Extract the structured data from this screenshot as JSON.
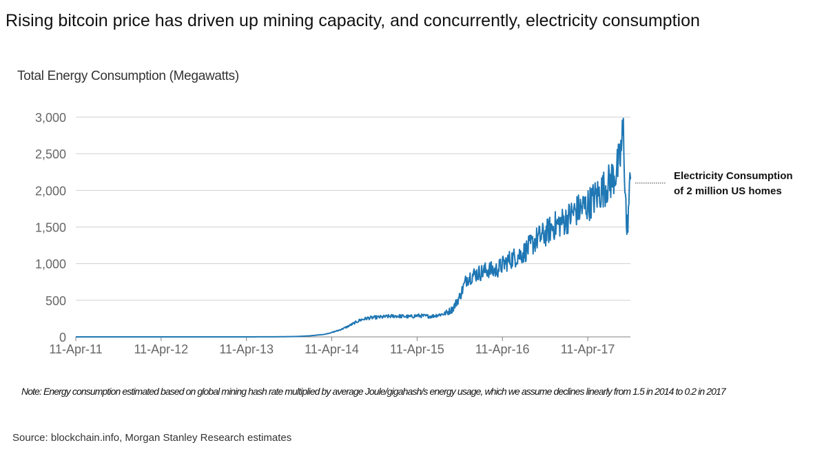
{
  "title": "Rising bitcoin price has driven up mining capacity, and concurrently, electricity consumption",
  "note": "Note: Energy consumption estimated based on global mining hash rate multiplied by average Joule/gigahash/s energy usage, which we assume declines linearly from 1.5 in 2014 to 0.2 in 2017",
  "source": "Source: blockchain.info, Morgan Stanley Research estimates",
  "annotation": {
    "line1": "Electricity Consumption",
    "line2": "of 2 million US homes",
    "value": 2100
  },
  "colors": {
    "series": "#1f77b4",
    "grid": "#d0d0d0",
    "axis": "#7f7f7f"
  },
  "chart_data": {
    "type": "line",
    "title": "Total Energy Consumption (Megawatts)",
    "xlabel": "",
    "ylabel": "Total Energy Consumption (Megawatts)",
    "ylim": [
      0,
      3000
    ],
    "yticks": [
      0,
      500,
      1000,
      1500,
      2000,
      2500,
      3000
    ],
    "ytick_labels": [
      "0",
      "500",
      "1,000",
      "1,500",
      "2,000",
      "2,500",
      "3,000"
    ],
    "xticks": [
      0,
      12,
      24,
      36,
      48,
      60,
      72
    ],
    "xtick_labels": [
      "11-Apr-11",
      "11-Apr-12",
      "11-Apr-13",
      "11-Apr-14",
      "11-Apr-15",
      "11-Apr-16",
      "11-Apr-17"
    ],
    "x_unit": "months since 11-Apr-11",
    "xlim": [
      0,
      78
    ],
    "grid": true,
    "series": [
      {
        "name": "Total Energy Consumption",
        "x": [
          0,
          12,
          24,
          29,
          31,
          33,
          35,
          36,
          37,
          38,
          39,
          40,
          41,
          42,
          43,
          44,
          45,
          46,
          47,
          48,
          49,
          50,
          51,
          52,
          53,
          54,
          55,
          56,
          57,
          58,
          59,
          60,
          61,
          62,
          63,
          64,
          65,
          66,
          67,
          68,
          69,
          70,
          71,
          72,
          73,
          74,
          75,
          76,
          76.5,
          77,
          77.5,
          78
        ],
        "values": [
          0,
          0,
          0,
          2,
          5,
          15,
          35,
          60,
          90,
          130,
          180,
          230,
          255,
          265,
          270,
          280,
          285,
          280,
          275,
          290,
          285,
          280,
          300,
          320,
          380,
          550,
          800,
          850,
          880,
          920,
          900,
          980,
          1050,
          1100,
          1150,
          1250,
          1350,
          1400,
          1500,
          1550,
          1600,
          1700,
          1750,
          1800,
          1900,
          2000,
          2100,
          2250,
          2400,
          2800,
          1400,
          2150
        ]
      }
    ]
  }
}
